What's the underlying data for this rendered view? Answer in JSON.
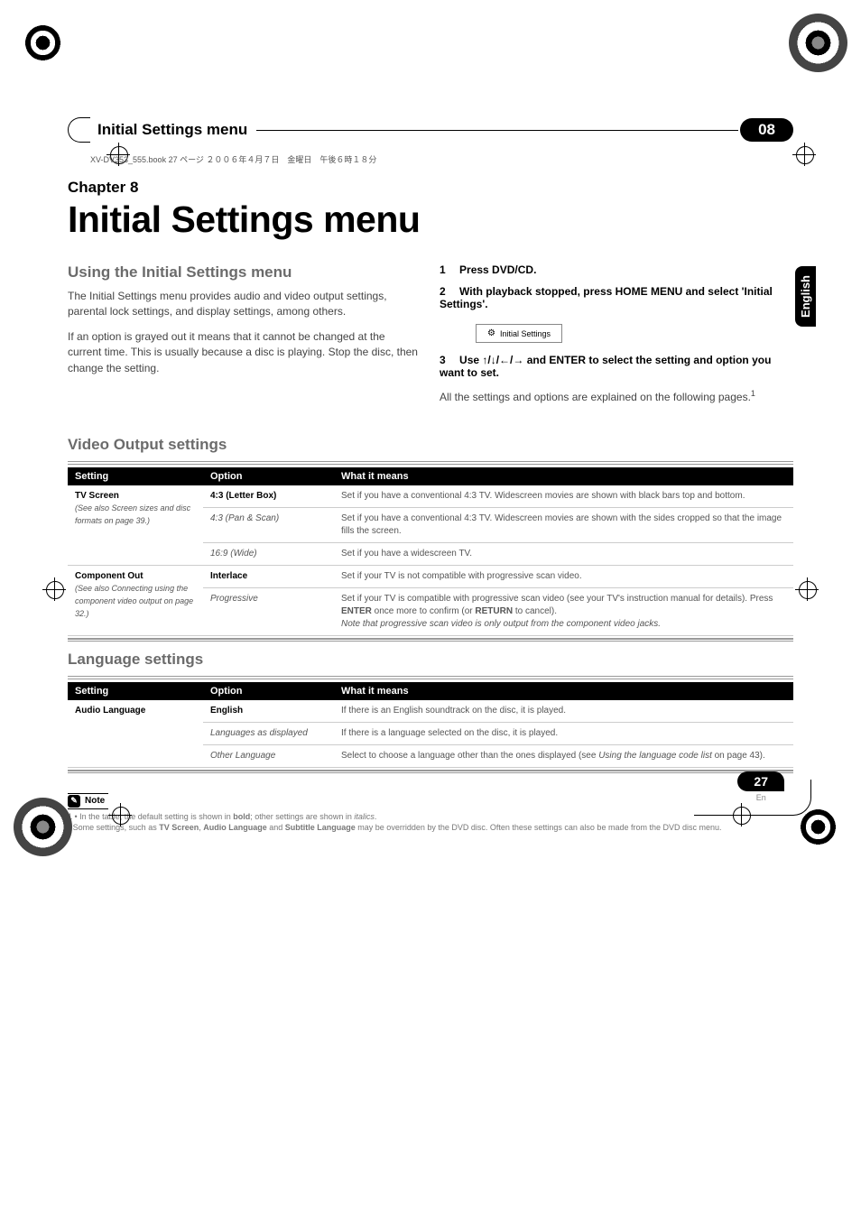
{
  "topLine": "XV-DV353_555.book 27 ページ ２００６年４月７日　金曜日　午後６時１８分",
  "header": {
    "title": "Initial Settings menu",
    "chapterNum": "08"
  },
  "englishTab": "English",
  "chapterLabel": "Chapter 8",
  "mainTitle": "Initial Settings menu",
  "leftCol": {
    "heading": "Using the Initial Settings menu",
    "para1": "The Initial Settings menu provides audio and video output settings, parental lock settings, and display settings, among others.",
    "para2": "If an option is grayed out it means that it cannot be changed at the current time. This is usually because a disc is playing. Stop the disc, then change the setting."
  },
  "rightCol": {
    "step1Num": "1",
    "step1": "Press DVD/CD.",
    "step2Num": "2",
    "step2": "With playback stopped, press HOME MENU and select 'Initial Settings'.",
    "boxLabel": "Initial Settings",
    "step3Num": "3",
    "step3a": "Use ",
    "step3arrows": "↑/↓/←/→",
    "step3b": " and ENTER to select the setting and option you want to set.",
    "step3note": "All the settings and options are explained on the following pages.",
    "step3sup": "1"
  },
  "videoSection": {
    "heading": "Video Output settings",
    "headers": {
      "c1": "Setting",
      "c2": "Option",
      "c3": "What it means"
    },
    "rows": [
      {
        "setting": "TV Screen",
        "settingNote": "(See also Screen sizes and disc formats on page 39.)",
        "option": "4:3 (Letter Box)",
        "optionStyle": "bold",
        "meaning": "Set if you have a conventional 4:3 TV. Widescreen movies are shown with black bars top and bottom."
      },
      {
        "option": "4:3 (Pan & Scan)",
        "optionStyle": "italic",
        "meaning": "Set if you have a conventional 4:3 TV. Widescreen movies are shown with the sides cropped so that the image fills the screen."
      },
      {
        "option": "16:9 (Wide)",
        "optionStyle": "italic",
        "meaning": "Set if you have a widescreen TV."
      },
      {
        "setting": "Component Out",
        "settingNote": "(See also Connecting using the component video output on page 32.)",
        "option": "Interlace",
        "optionStyle": "bold",
        "meaning": "Set if your TV is not compatible with progressive scan video."
      },
      {
        "option": "Progressive",
        "optionStyle": "italic",
        "meaningParts": {
          "p1": "Set if your TV is compatible with progressive scan video (see your TV's instruction manual for details). Press ",
          "b1": "ENTER",
          "p2": " once more to confirm (or ",
          "b2": "RETURN",
          "p3": " to cancel).",
          "it": "Note that progressive scan video is only output from the component video jacks."
        }
      }
    ]
  },
  "langSection": {
    "heading": "Language settings",
    "headers": {
      "c1": "Setting",
      "c2": "Option",
      "c3": "What it means"
    },
    "rows": [
      {
        "setting": "Audio Language",
        "option": "English",
        "optionStyle": "bold",
        "meaning": "If there is an English soundtrack on the disc, it is played."
      },
      {
        "option": "Languages as displayed",
        "optionStyle": "italic",
        "meaning": "If there is a language selected on the disc, it is played."
      },
      {
        "option": "Other Language",
        "optionStyle": "italic",
        "meaningParts": {
          "p1": "Select to choose a language other than the ones displayed (see ",
          "it": "Using the language code list",
          "p2": " on page 43)."
        }
      }
    ]
  },
  "note": {
    "label": "Note",
    "line1a": "1 • In the table, the default setting is shown in ",
    "line1b": "bold",
    "line1c": "; other settings are shown in ",
    "line1d": "italics",
    "line1e": ".",
    "line2a": "• Some settings, such as ",
    "line2b": "TV Screen",
    "line2c": ", ",
    "line2d": "Audio Language",
    "line2e": " and ",
    "line2f": "Subtitle Language",
    "line2g": " may be overridden by the DVD disc. Often these settings can also be made from the DVD disc menu."
  },
  "footer": {
    "pageNum": "27",
    "en": "En"
  },
  "colors": {
    "gray": "#6b6b6b",
    "lightGray": "#888",
    "textGray": "#555"
  }
}
